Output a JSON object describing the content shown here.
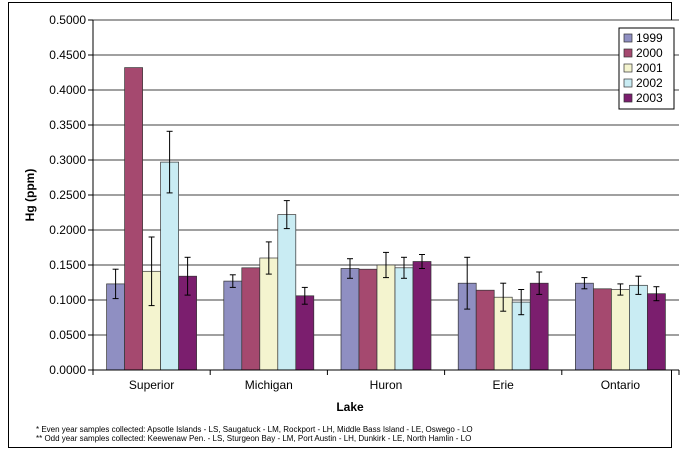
{
  "chart_data": {
    "type": "bar",
    "xlabel": "Lake",
    "ylabel": "Hg (ppm)",
    "ylim": [
      0,
      0.5
    ],
    "yticks": [
      "0.0000",
      "0.0500",
      "0.1000",
      "0.1500",
      "0.2000",
      "0.2500",
      "0.3000",
      "0.3500",
      "0.4000",
      "0.4500",
      "0.5000"
    ],
    "categories": [
      "Superior",
      "Michigan",
      "Huron",
      "Erie",
      "Ontario"
    ],
    "legend_position": "top-right",
    "grid": true,
    "series": [
      {
        "name": "1999",
        "color": "#8f8fc2",
        "values": [
          0.123,
          0.127,
          0.145,
          0.124,
          0.124
        ],
        "err": [
          0.021,
          0.009,
          0.014,
          0.037,
          0.008
        ]
      },
      {
        "name": "2000",
        "color": "#a5496f",
        "values": [
          0.432,
          0.146,
          0.144,
          0.114,
          0.116
        ],
        "err": [
          null,
          null,
          null,
          null,
          null
        ]
      },
      {
        "name": "2001",
        "color": "#f4f4cf",
        "values": [
          0.141,
          0.16,
          0.15,
          0.104,
          0.115
        ],
        "err": [
          0.049,
          0.023,
          0.018,
          0.02,
          0.008
        ]
      },
      {
        "name": "2002",
        "color": "#c9ecf3",
        "values": [
          0.297,
          0.222,
          0.146,
          0.097,
          0.121
        ],
        "err": [
          0.044,
          0.02,
          0.015,
          0.018,
          0.013
        ]
      },
      {
        "name": "2003",
        "color": "#7b1e6e",
        "values": [
          0.134,
          0.106,
          0.155,
          0.124,
          0.109
        ],
        "err": [
          0.027,
          0.012,
          0.01,
          0.016,
          0.01
        ]
      }
    ]
  },
  "footnotes": {
    "even": "* Even year samples collected: Apsotle Islands - LS, Saugatuck - LM, Rockport - LH, Middle Bass Island - LE, Oswego - LO",
    "odd": "** Odd year samples collected: Keewenaw Pen. - LS, Sturgeon Bay - LM, Port Austin - LH, Dunkirk - LE, North Hamlin - LO"
  }
}
